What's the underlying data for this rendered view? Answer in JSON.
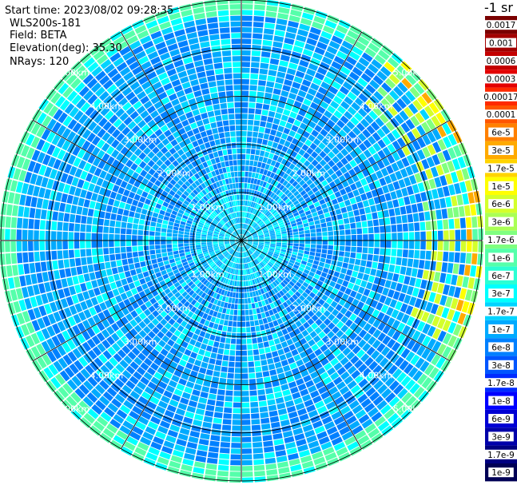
{
  "header": {
    "start_time": "Start time: 2023/08/02 09:28:35",
    "instrument": "WLS200s-181",
    "field": "Field: BETA",
    "elevation": "Elevation(deg): 35.30",
    "nrays": "NRays: 120"
  },
  "colors": {
    "grid": "#000000",
    "range_label": "#ffffff",
    "background": "#ffffff"
  },
  "chart_data": {
    "type": "heatmap",
    "projection": "polar-ppi",
    "title": "",
    "nrays": 120,
    "max_range_km": 5.0,
    "range_rings_km": [
      1,
      2,
      3,
      4,
      5
    ],
    "spoke_angles_deg": [
      0,
      30,
      60,
      90,
      120,
      150,
      180,
      210,
      240,
      270,
      300,
      330
    ],
    "range_labels": {
      "1": "1.00km",
      "2": "2.00km",
      "3": "3.00km",
      "4": "4.00km",
      "5": "5.00km"
    },
    "colorbar": {
      "unit_label": "-1 sr",
      "ticks": [
        "0.0017",
        "0.001",
        "0.0006",
        "0.0003",
        "0.00017",
        "0.0001",
        "6e-5",
        "3e-5",
        "1.7e-5",
        "1e-5",
        "6e-6",
        "3e-6",
        "1.7e-6",
        "1e-6",
        "6e-7",
        "3e-7",
        "1.7e-7",
        "1e-7",
        "6e-8",
        "3e-8",
        "1.7e-8",
        "1e-8",
        "6e-9",
        "3e-9",
        "1.7e-9",
        "1e-9"
      ],
      "colors": [
        "#7a0000",
        "#a30000",
        "#c40000",
        "#e30000",
        "#ff2a00",
        "#ff5500",
        "#ff8000",
        "#ffaa00",
        "#ffd400",
        "#ffff00",
        "#d4ff2b",
        "#aaff55",
        "#80ff80",
        "#55ffaa",
        "#2bffd4",
        "#00ffff",
        "#00d4ff",
        "#00aaff",
        "#0080ff",
        "#0055ff",
        "#002bff",
        "#0000ff",
        "#0000d4",
        "#0000aa",
        "#000080",
        "#000055"
      ],
      "log_range": [
        1e-09,
        0.0017
      ]
    },
    "field_summary": {
      "near_range_km": [
        0,
        1.0
      ],
      "near_value": "3e-7",
      "mid_range_km": [
        1.0,
        4.5
      ],
      "mid_values": [
        "6e-8",
        "1e-7",
        "3e-7"
      ],
      "outer_ring_km": [
        4.6,
        5.0
      ],
      "outer_value": "1e-6",
      "east_edge_max": "3e-5"
    }
  }
}
